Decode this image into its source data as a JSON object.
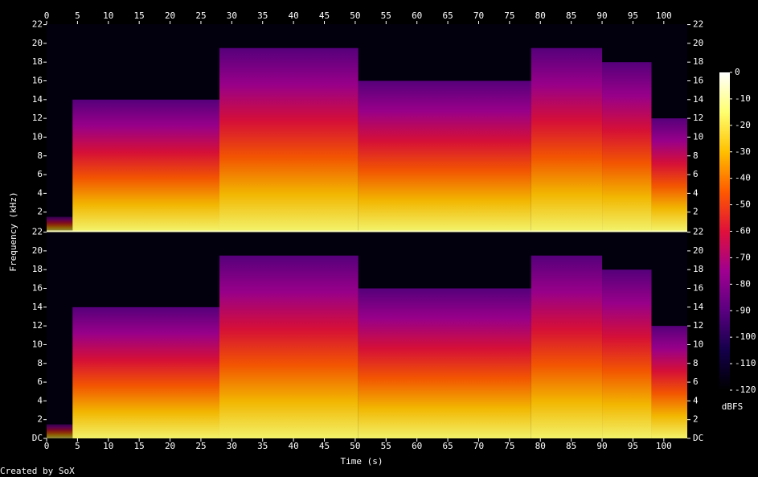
{
  "chart_data": {
    "type": "spectrogram",
    "x_label": "Time (s)",
    "y_label": "Frequency (kHz)",
    "footer": "Created by SoX",
    "colorbar_label": "dBFS",
    "xlim": [
      0,
      103.8
    ],
    "xticks": [
      0,
      5,
      10,
      15,
      20,
      25,
      30,
      35,
      40,
      45,
      50,
      55,
      60,
      65,
      70,
      75,
      80,
      85,
      90,
      95,
      100
    ],
    "ylim": [
      0,
      22.05
    ],
    "yticks": [
      {
        "value": 0,
        "label": "DC"
      },
      2,
      4,
      6,
      8,
      10,
      12,
      14,
      16,
      18,
      20,
      22
    ],
    "clim": [
      -120,
      0
    ],
    "cticks": [
      0,
      -10,
      -20,
      -30,
      -40,
      -50,
      -60,
      -70,
      -80,
      -90,
      -100,
      -110,
      -120
    ],
    "colorscale": [
      "#000000",
      "#14004a",
      "#5a0080",
      "#a00090",
      "#e0103a",
      "#ff5a00",
      "#ffc000",
      "#ffff70",
      "#ffffff"
    ],
    "segments": [
      {
        "start": 0,
        "end": 4.2,
        "max_khz": 1.5
      },
      {
        "start": 4.2,
        "end": 28,
        "max_khz": 14
      },
      {
        "start": 28,
        "end": 50.5,
        "max_khz": 19.5
      },
      {
        "start": 50.5,
        "end": 78.5,
        "max_khz": 16
      },
      {
        "start": 78.5,
        "end": 90,
        "max_khz": 19.5
      },
      {
        "start": 90,
        "end": 98,
        "max_khz": 18
      },
      {
        "start": 98,
        "end": 103.8,
        "max_khz": 12
      }
    ]
  }
}
